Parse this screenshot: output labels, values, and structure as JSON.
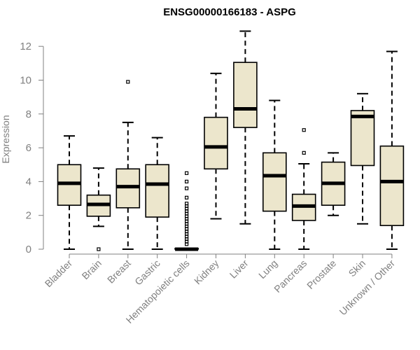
{
  "chart_data": {
    "type": "boxplot",
    "title": "ENSG00000166183 - ASPG",
    "ylabel": "Expression",
    "xlabel": "",
    "ylim": [
      0,
      13
    ],
    "yticks": [
      0,
      2,
      4,
      6,
      8,
      10,
      12
    ],
    "box_fill": "#ece6cc",
    "categories": [
      "Bladder",
      "Brain",
      "Breast",
      "Gastric",
      "Hematopoietic cells",
      "Kidney",
      "Liver",
      "Lung",
      "Pancreas",
      "Prostate",
      "Skin",
      "Unknown / Other"
    ],
    "boxes": [
      {
        "whisker_low": 0.0,
        "q1": 2.6,
        "median": 3.9,
        "q3": 5.0,
        "whisker_high": 6.7,
        "outliers": []
      },
      {
        "whisker_low": 1.35,
        "q1": 1.95,
        "median": 2.65,
        "q3": 3.2,
        "whisker_high": 4.8,
        "outliers": [
          0.0
        ]
      },
      {
        "whisker_low": 0.0,
        "q1": 2.45,
        "median": 3.7,
        "q3": 4.75,
        "whisker_high": 7.5,
        "outliers": [
          9.9
        ]
      },
      {
        "whisker_low": 0.0,
        "q1": 1.9,
        "median": 3.85,
        "q3": 5.0,
        "whisker_high": 6.6,
        "outliers": []
      },
      {
        "whisker_low": 0.0,
        "q1": 0.0,
        "median": 0.0,
        "q3": 0.05,
        "whisker_high": 0.05,
        "outliers": [
          0.3,
          0.45,
          0.6,
          0.75,
          0.9,
          1.05,
          1.2,
          1.35,
          1.5,
          1.65,
          1.8,
          1.95,
          2.1,
          2.25,
          2.4,
          2.55,
          2.7,
          3.05,
          3.6,
          4.0,
          4.5
        ]
      },
      {
        "whisker_low": 1.8,
        "q1": 4.75,
        "median": 6.05,
        "q3": 7.8,
        "whisker_high": 10.4,
        "outliers": []
      },
      {
        "whisker_low": 1.5,
        "q1": 7.2,
        "median": 8.3,
        "q3": 11.05,
        "whisker_high": 12.9,
        "outliers": []
      },
      {
        "whisker_low": 0.0,
        "q1": 2.25,
        "median": 4.35,
        "q3": 5.7,
        "whisker_high": 8.8,
        "outliers": []
      },
      {
        "whisker_low": 0.0,
        "q1": 1.7,
        "median": 2.55,
        "q3": 3.25,
        "whisker_high": 5.05,
        "outliers": [
          5.7,
          7.05
        ]
      },
      {
        "whisker_low": 2.0,
        "q1": 2.6,
        "median": 3.9,
        "q3": 5.15,
        "whisker_high": 5.7,
        "outliers": []
      },
      {
        "whisker_low": 1.5,
        "q1": 4.95,
        "median": 7.85,
        "q3": 8.2,
        "whisker_high": 9.2,
        "outliers": []
      },
      {
        "whisker_low": 0.0,
        "q1": 1.4,
        "median": 4.0,
        "q3": 6.1,
        "whisker_high": 11.7,
        "outliers": []
      }
    ]
  }
}
